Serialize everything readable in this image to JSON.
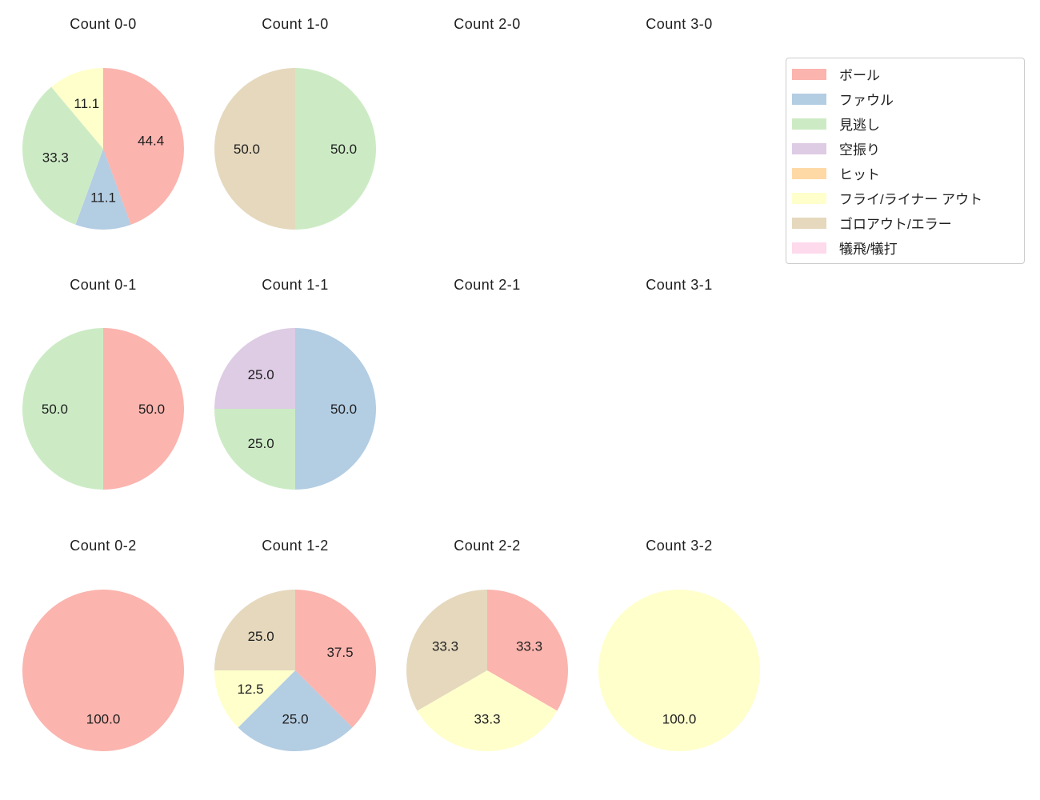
{
  "chart_data": {
    "type": "pie",
    "grid": {
      "rows": 3,
      "cols": 4
    },
    "start_angle_deg": 90,
    "direction": "clockwise",
    "pct_distance": 0.6,
    "value_format": "one_decimal_percent",
    "background_color": "#ffffff",
    "text_color": "#1f1f1f",
    "legend": [
      {
        "label": "ボール",
        "color": "#FBB4AE"
      },
      {
        "label": "ファウル",
        "color": "#B3CDE3"
      },
      {
        "label": "見逃し",
        "color": "#CCEBC5"
      },
      {
        "label": "空振り",
        "color": "#DECBE4"
      },
      {
        "label": "ヒット",
        "color": "#FED9A6"
      },
      {
        "label": "フライ/ライナー アウト",
        "color": "#FFFFCC"
      },
      {
        "label": "ゴロアウト/エラー",
        "color": "#E5D8BD"
      },
      {
        "label": "犠飛/犠打",
        "color": "#FDDAEC"
      }
    ],
    "pies": [
      {
        "title": "Count 0-0",
        "slices": [
          {
            "label": "ボール",
            "value": 44.4
          },
          {
            "label": "ファウル",
            "value": 11.1
          },
          {
            "label": "見逃し",
            "value": 33.3
          },
          {
            "label": "フライ/ライナー アウト",
            "value": 11.1
          }
        ]
      },
      {
        "title": "Count 1-0",
        "slices": [
          {
            "label": "見逃し",
            "value": 50.0
          },
          {
            "label": "ゴロアウト/エラー",
            "value": 50.0
          }
        ]
      },
      {
        "title": "Count 2-0",
        "slices": []
      },
      {
        "title": "Count 3-0",
        "slices": []
      },
      {
        "title": "Count 0-1",
        "slices": [
          {
            "label": "ボール",
            "value": 50.0
          },
          {
            "label": "見逃し",
            "value": 50.0
          }
        ]
      },
      {
        "title": "Count 1-1",
        "slices": [
          {
            "label": "ファウル",
            "value": 50.0
          },
          {
            "label": "見逃し",
            "value": 25.0
          },
          {
            "label": "空振り",
            "value": 25.0
          }
        ]
      },
      {
        "title": "Count 2-1",
        "slices": []
      },
      {
        "title": "Count 3-1",
        "slices": []
      },
      {
        "title": "Count 0-2",
        "slices": [
          {
            "label": "ボール",
            "value": 100.0
          }
        ]
      },
      {
        "title": "Count 1-2",
        "slices": [
          {
            "label": "ボール",
            "value": 37.5
          },
          {
            "label": "ファウル",
            "value": 25.0
          },
          {
            "label": "フライ/ライナー アウト",
            "value": 12.5
          },
          {
            "label": "ゴロアウト/エラー",
            "value": 25.0
          }
        ]
      },
      {
        "title": "Count 2-2",
        "slices": [
          {
            "label": "ボール",
            "value": 33.3
          },
          {
            "label": "フライ/ライナー アウト",
            "value": 33.3
          },
          {
            "label": "ゴロアウト/エラー",
            "value": 33.3
          }
        ]
      },
      {
        "title": "Count 3-2",
        "slices": [
          {
            "label": "フライ/ライナー アウト",
            "value": 100.0
          }
        ]
      }
    ]
  }
}
